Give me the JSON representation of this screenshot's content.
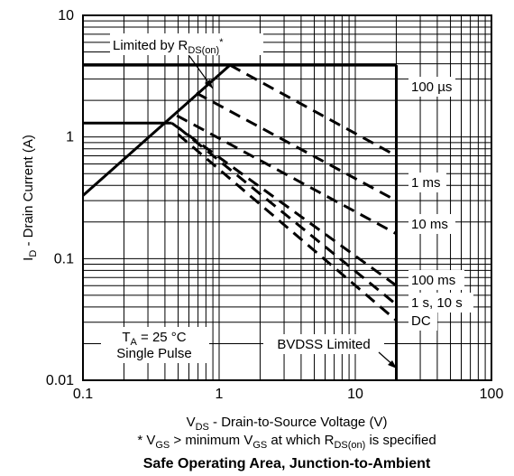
{
  "chart_data": {
    "type": "line",
    "title": "Safe Operating Area, Junction-to-Ambient",
    "xlabel": "V_DS - Drain-to-Source Voltage (V)",
    "ylabel": "I_D - Drain Current (A)",
    "footnote": "* V_GS > minimum V_GS at which R_DS(on) is specified",
    "x_scale": "log",
    "y_scale": "log",
    "xlim": [
      0.1,
      100
    ],
    "ylim": [
      0.01,
      10
    ],
    "x_tick_labels": [
      "0.1",
      "1",
      "10",
      "100"
    ],
    "y_tick_labels": [
      "0.01",
      "0.1",
      "1",
      "10"
    ],
    "grid": true,
    "series": [
      {
        "name": "Limited by R_DS(on)*",
        "style": "solid",
        "points": [
          [
            0.1,
            0.33
          ],
          [
            1.2,
            3.9
          ]
        ]
      },
      {
        "name": "100 µs",
        "style": "dashed",
        "points": [
          [
            1.2,
            3.9
          ],
          [
            20,
            0.7
          ]
        ]
      },
      {
        "name": "1 ms",
        "style": "dashed",
        "points": [
          [
            0.68,
            2.3
          ],
          [
            20,
            0.3
          ]
        ]
      },
      {
        "name": "10 ms",
        "style": "dashed",
        "points": [
          [
            0.49,
            1.5
          ],
          [
            20,
            0.16
          ]
        ]
      },
      {
        "name": "100 ms",
        "style": "dashed",
        "points": [
          [
            0.45,
            1.3
          ],
          [
            20,
            0.06
          ]
        ]
      },
      {
        "name": "1 s, 10 s",
        "style": "dashed",
        "points": [
          [
            0.5,
            1.2
          ],
          [
            20,
            0.042
          ]
        ]
      },
      {
        "name": "DC",
        "style": "dashed",
        "points": [
          [
            0.5,
            1.05
          ],
          [
            20,
            0.031
          ]
        ]
      },
      {
        "name": "",
        "style": "solid",
        "points": [
          [
            0.1,
            1.3
          ],
          [
            0.45,
            1.3
          ]
        ]
      },
      {
        "name": "",
        "style": "solid",
        "points": [
          [
            0.1,
            3.9
          ],
          [
            20,
            3.9
          ]
        ]
      },
      {
        "name": "BVDSS Limited",
        "style": "solid",
        "points": [
          [
            20,
            3.9
          ],
          [
            20,
            0.01
          ]
        ]
      }
    ],
    "annotations": {
      "rds_limit": "Limited by R_DS(on)*",
      "conditions_line1": "T_A = 25 °C",
      "conditions_line2": "Single Pulse",
      "bvdss": "BVDSS Limited",
      "pulse_labels": [
        "100 µs",
        "1 ms",
        "10 ms",
        "100 ms",
        "1 s, 10 s",
        "DC"
      ]
    }
  }
}
